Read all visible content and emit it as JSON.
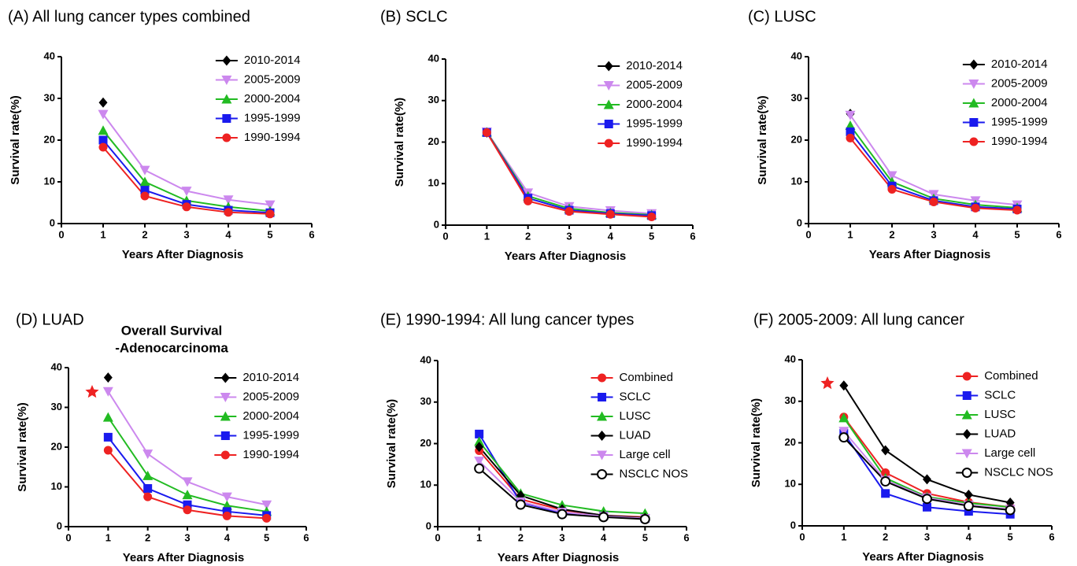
{
  "chart_data": [
    {
      "type": "line",
      "title": "(A) All lung cancer types combined",
      "ylabel": "Survival rate(%)",
      "xlabel": "Years After Diagnosis",
      "x": [
        1,
        2,
        3,
        4,
        5
      ],
      "xlim": [
        0,
        6
      ],
      "xticks": [
        0,
        1,
        2,
        3,
        4,
        5,
        6
      ],
      "ylim": [
        0,
        40
      ],
      "yticks": [
        0,
        10,
        20,
        30,
        40
      ],
      "grid": false,
      "legend": "upper right",
      "series": [
        {
          "name": "2010-2014",
          "color": "#000000",
          "marker": "diamond",
          "values": [
            29,
            null,
            null,
            null,
            null
          ]
        },
        {
          "name": "2005-2009",
          "color": "#cc88ee",
          "marker": "triangle-down",
          "values": [
            26.2,
            12.8,
            7.8,
            5.7,
            4.5
          ]
        },
        {
          "name": "2000-2004",
          "color": "#22bb22",
          "marker": "triangle",
          "values": [
            22.3,
            10.0,
            5.5,
            4.0,
            3.0
          ]
        },
        {
          "name": "1995-1999",
          "color": "#1a1aee",
          "marker": "square",
          "values": [
            20.0,
            8.0,
            4.6,
            3.2,
            2.6
          ]
        },
        {
          "name": "1990-1994",
          "color": "#ee2222",
          "marker": "circle",
          "values": [
            18.3,
            6.6,
            4.0,
            2.7,
            2.3
          ]
        }
      ]
    },
    {
      "type": "line",
      "title": "(B) SCLC",
      "ylabel": "Survival rate(%)",
      "xlabel": "Years After Diagnosis",
      "x": [
        1,
        2,
        3,
        4,
        5
      ],
      "xlim": [
        0,
        6
      ],
      "xticks": [
        0,
        1,
        2,
        3,
        4,
        5,
        6
      ],
      "ylim": [
        0,
        40
      ],
      "yticks": [
        0,
        10,
        20,
        30,
        40
      ],
      "grid": false,
      "legend": "upper right",
      "series": [
        {
          "name": "2010-2014",
          "color": "#000000",
          "marker": "diamond",
          "values": [
            22.3,
            null,
            null,
            null,
            null
          ]
        },
        {
          "name": "2005-2009",
          "color": "#cc88ee",
          "marker": "triangle-down",
          "values": [
            22.5,
            7.8,
            4.5,
            3.5,
            2.8
          ]
        },
        {
          "name": "2000-2004",
          "color": "#22bb22",
          "marker": "triangle",
          "values": [
            22.4,
            7.0,
            4.0,
            3.0,
            2.5
          ]
        },
        {
          "name": "1995-1999",
          "color": "#1a1aee",
          "marker": "square",
          "values": [
            22.3,
            6.5,
            3.6,
            2.8,
            2.3
          ]
        },
        {
          "name": "1990-1994",
          "color": "#ee2222",
          "marker": "circle",
          "values": [
            22.3,
            5.8,
            3.3,
            2.6,
            2.0
          ]
        }
      ]
    },
    {
      "type": "line",
      "title": "(C) LUSC",
      "ylabel": "Survival rate(%)",
      "xlabel": "Years After Diagnosis",
      "x": [
        1,
        2,
        3,
        4,
        5
      ],
      "xlim": [
        0,
        6
      ],
      "xticks": [
        0,
        1,
        2,
        3,
        4,
        5,
        6
      ],
      "ylim": [
        0,
        40
      ],
      "yticks": [
        0,
        10,
        20,
        30,
        40
      ],
      "grid": false,
      "legend": "upper right",
      "series": [
        {
          "name": "2010-2014",
          "color": "#000000",
          "marker": "diamond",
          "values": [
            26.3,
            null,
            null,
            null,
            null
          ]
        },
        {
          "name": "2005-2009",
          "color": "#cc88ee",
          "marker": "triangle-down",
          "values": [
            26.0,
            11.5,
            7.0,
            5.5,
            4.5
          ]
        },
        {
          "name": "2000-2004",
          "color": "#22bb22",
          "marker": "triangle",
          "values": [
            23.5,
            10.0,
            6.0,
            4.5,
            3.8
          ]
        },
        {
          "name": "1995-1999",
          "color": "#1a1aee",
          "marker": "square",
          "values": [
            22.0,
            9.0,
            5.5,
            4.0,
            3.5
          ]
        },
        {
          "name": "1990-1994",
          "color": "#ee2222",
          "marker": "circle",
          "values": [
            20.5,
            8.2,
            5.2,
            3.7,
            3.2
          ]
        }
      ]
    },
    {
      "type": "line",
      "title": "(D) LUAD",
      "subtitle": [
        "Overall Survival",
        "-Adenocarcinoma"
      ],
      "ylabel": "Survival rate(%)",
      "xlabel": "Years After Diagnosis",
      "x": [
        1,
        2,
        3,
        4,
        5
      ],
      "xlim": [
        0,
        6
      ],
      "xticks": [
        0,
        1,
        2,
        3,
        4,
        5,
        6
      ],
      "ylim": [
        0,
        40
      ],
      "yticks": [
        0,
        10,
        20,
        30,
        40
      ],
      "grid": false,
      "legend": "upper right",
      "series": [
        {
          "name": "2010-2014",
          "color": "#000000",
          "marker": "diamond",
          "values": [
            37.5,
            null,
            null,
            null,
            null
          ]
        },
        {
          "name": "2005-2009",
          "color": "#cc88ee",
          "marker": "triangle-down",
          "values": [
            34.0,
            18.3,
            11.3,
            7.5,
            5.5
          ]
        },
        {
          "name": "2000-2004",
          "color": "#22bb22",
          "marker": "triangle",
          "values": [
            27.5,
            12.8,
            8.0,
            5.3,
            3.8
          ]
        },
        {
          "name": "1995-1999",
          "color": "#1a1aee",
          "marker": "square",
          "values": [
            22.5,
            9.6,
            5.5,
            3.8,
            2.8
          ]
        },
        {
          "name": "1990-1994",
          "color": "#ee2222",
          "marker": "circle",
          "values": [
            19.2,
            7.5,
            4.2,
            2.7,
            2.1
          ]
        }
      ]
    },
    {
      "type": "line",
      "title": "(E) 1990-1994: All lung cancer types",
      "ylabel": "Survival rate(%)",
      "xlabel": "Years After Diagnosis",
      "x": [
        1,
        2,
        3,
        4,
        5
      ],
      "xlim": [
        0,
        6
      ],
      "xticks": [
        0,
        1,
        2,
        3,
        4,
        5,
        6
      ],
      "ylim": [
        0,
        40
      ],
      "yticks": [
        0,
        10,
        20,
        30,
        40
      ],
      "grid": false,
      "legend": "upper right",
      "series": [
        {
          "name": "Combined",
          "color": "#ee2222",
          "marker": "circle",
          "values": [
            18.3,
            6.6,
            4.0,
            2.7,
            2.3
          ]
        },
        {
          "name": "SCLC",
          "color": "#1a1aee",
          "marker": "square",
          "values": [
            22.3,
            5.8,
            3.3,
            2.6,
            2.0
          ]
        },
        {
          "name": "LUSC",
          "color": "#22bb22",
          "marker": "triangle",
          "values": [
            20.5,
            8.0,
            5.2,
            3.7,
            3.2
          ]
        },
        {
          "name": "LUAD",
          "color": "#000000",
          "marker": "diamond",
          "values": [
            19.2,
            7.5,
            4.2,
            2.7,
            2.1
          ]
        },
        {
          "name": "Large cell",
          "color": "#cc88ee",
          "marker": "triangle-down",
          "values": [
            15.8,
            6.0,
            3.5,
            2.5,
            2.0
          ]
        },
        {
          "name": "NSCLC NOS",
          "color": "#000000",
          "marker": "open-circle",
          "values": [
            14.0,
            5.3,
            3.0,
            2.3,
            1.8
          ]
        }
      ]
    },
    {
      "type": "line",
      "title": "(F) 2005-2009: All lung cancer",
      "ylabel": "Survival rate(%)",
      "xlabel": "Years After Diagnosis",
      "x": [
        1,
        2,
        3,
        4,
        5
      ],
      "xlim": [
        0,
        6
      ],
      "xticks": [
        0,
        1,
        2,
        3,
        4,
        5,
        6
      ],
      "ylim": [
        0,
        40
      ],
      "yticks": [
        0,
        10,
        20,
        30,
        40
      ],
      "grid": false,
      "legend": "upper right",
      "series": [
        {
          "name": "Combined",
          "color": "#ee2222",
          "marker": "circle",
          "values": [
            26.2,
            12.8,
            7.8,
            5.7,
            4.5
          ]
        },
        {
          "name": "SCLC",
          "color": "#1a1aee",
          "marker": "square",
          "values": [
            22.3,
            7.8,
            4.5,
            3.5,
            2.8
          ]
        },
        {
          "name": "LUSC",
          "color": "#22bb22",
          "marker": "triangle",
          "values": [
            26.0,
            11.5,
            7.0,
            5.5,
            4.5
          ]
        },
        {
          "name": "LUAD",
          "color": "#000000",
          "marker": "diamond",
          "values": [
            33.8,
            18.2,
            11.2,
            7.5,
            5.6
          ]
        },
        {
          "name": "Large cell",
          "color": "#cc88ee",
          "marker": "triangle-down",
          "values": [
            22.8,
            11.0,
            6.8,
            5.0,
            4.0
          ]
        },
        {
          "name": "NSCLC NOS",
          "color": "#000000",
          "marker": "open-circle",
          "values": [
            21.3,
            10.7,
            6.5,
            4.8,
            3.8
          ]
        }
      ]
    }
  ]
}
